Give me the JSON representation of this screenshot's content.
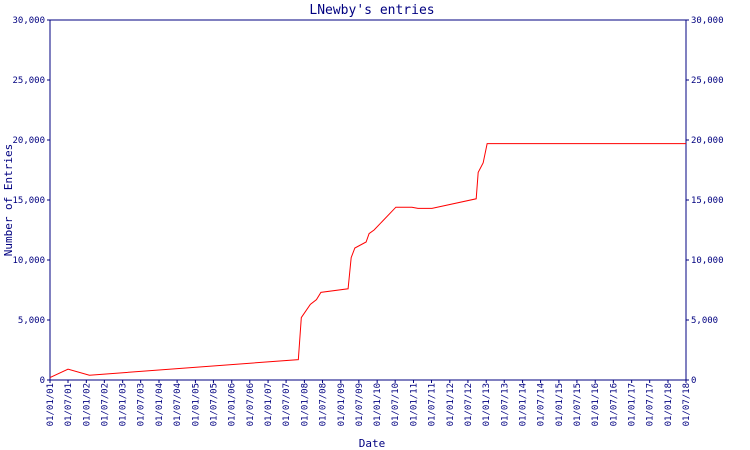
{
  "chart_data": {
    "type": "line",
    "title": "LNewby's entries",
    "xlabel": "Date",
    "ylabel": "Number of Entries",
    "color": "#ff0000",
    "x": [
      "2001-01-01",
      "2001-07-01",
      "2002-02-01",
      "2007-11-01",
      "2007-12-01",
      "2008-03-01",
      "2008-05-01",
      "2008-06-15",
      "2009-03-15",
      "2009-04-15",
      "2009-05-22",
      "2009-09-12",
      "2009-10-12",
      "2009-12-01",
      "2010-07-08",
      "2010-12-16",
      "2011-02-15",
      "2011-07-06",
      "2012-09-22",
      "2012-10-12",
      "2012-12-01",
      "2013-01-10",
      "2018-07-01"
    ],
    "values": [
      200,
      900,
      400,
      1700,
      5200,
      6300,
      6700,
      7300,
      7600,
      10200,
      11000,
      11500,
      12200,
      12500,
      14400,
      14400,
      14300,
      14300,
      15100,
      17300,
      18100,
      19700,
      19700
    ],
    "xlim": [
      "2001-01-01",
      "2018-07-01"
    ],
    "ylim": [
      0,
      30000
    ],
    "yticks": [
      0,
      {
        "value": 5000,
        "label": "5,000"
      },
      {
        "value": 10000,
        "label": "10,000"
      },
      {
        "value": 15000,
        "label": "15,000"
      },
      {
        "value": 20000,
        "label": "20,000"
      },
      {
        "value": 25000,
        "label": "25,000"
      },
      {
        "value": 30000,
        "label": "30,000"
      }
    ],
    "xticks": [
      {
        "value": "2001-01-01",
        "label": "01/01/01"
      },
      {
        "value": "2001-07-01",
        "label": "01/07/01"
      },
      {
        "value": "2002-01-01",
        "label": "01/01/02"
      },
      {
        "value": "2002-07-01",
        "label": "01/07/02"
      },
      {
        "value": "2003-01-01",
        "label": "01/01/03"
      },
      {
        "value": "2003-07-01",
        "label": "01/07/03"
      },
      {
        "value": "2004-01-01",
        "label": "01/01/04"
      },
      {
        "value": "2004-07-01",
        "label": "01/07/04"
      },
      {
        "value": "2005-01-01",
        "label": "01/01/05"
      },
      {
        "value": "2005-07-01",
        "label": "01/07/05"
      },
      {
        "value": "2006-01-01",
        "label": "01/01/06"
      },
      {
        "value": "2006-07-01",
        "label": "01/07/06"
      },
      {
        "value": "2007-01-01",
        "label": "01/01/07"
      },
      {
        "value": "2007-07-01",
        "label": "01/07/07"
      },
      {
        "value": "2008-01-01",
        "label": "01/01/08"
      },
      {
        "value": "2008-07-01",
        "label": "01/07/08"
      },
      {
        "value": "2009-01-01",
        "label": "01/01/09"
      },
      {
        "value": "2009-07-01",
        "label": "01/07/09"
      },
      {
        "value": "2010-01-01",
        "label": "01/01/10"
      },
      {
        "value": "2010-07-01",
        "label": "01/07/10"
      },
      {
        "value": "2011-01-01",
        "label": "01/01/11"
      },
      {
        "value": "2011-07-01",
        "label": "01/07/11"
      },
      {
        "value": "2012-01-01",
        "label": "01/01/12"
      },
      {
        "value": "2012-07-01",
        "label": "01/07/12"
      },
      {
        "value": "2013-01-01",
        "label": "01/01/13"
      },
      {
        "value": "2013-07-01",
        "label": "01/07/13"
      },
      {
        "value": "2014-01-01",
        "label": "01/01/14"
      },
      {
        "value": "2014-07-01",
        "label": "01/07/14"
      },
      {
        "value": "2015-01-01",
        "label": "01/01/15"
      },
      {
        "value": "2015-07-01",
        "label": "01/07/15"
      },
      {
        "value": "2016-01-01",
        "label": "01/01/16"
      },
      {
        "value": "2016-07-01",
        "label": "01/07/16"
      },
      {
        "value": "2017-01-01",
        "label": "01/01/17"
      },
      {
        "value": "2017-07-01",
        "label": "01/07/17"
      },
      {
        "value": "2018-01-01",
        "label": "01/01/18"
      },
      {
        "value": "2018-07-01",
        "label": "01/07/18"
      }
    ]
  }
}
